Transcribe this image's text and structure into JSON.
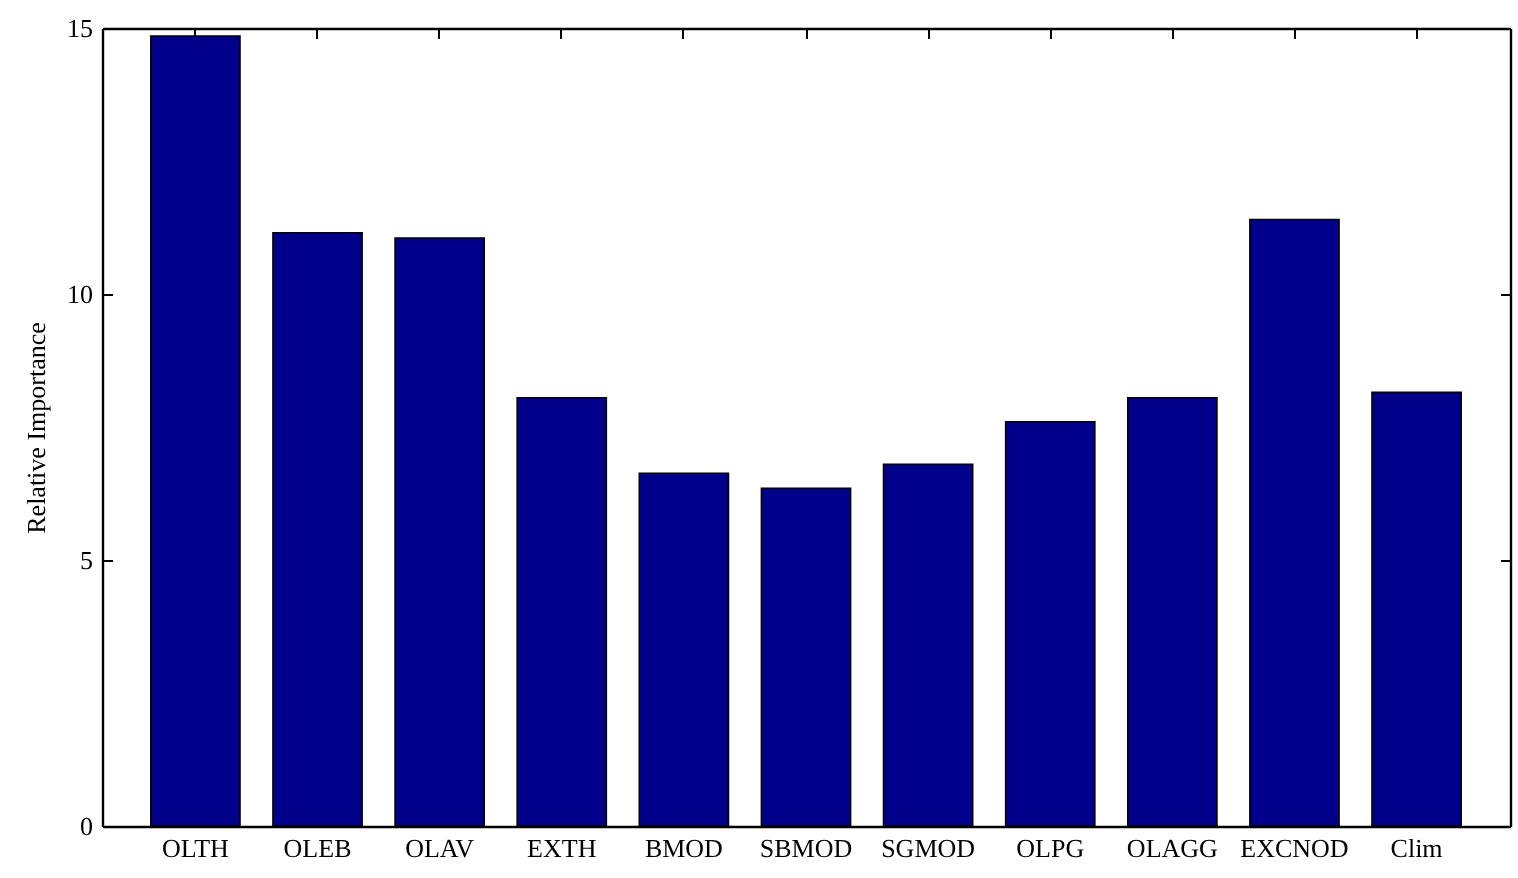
{
  "chart_data": {
    "type": "bar",
    "ylabel": "Relative Importance",
    "categories": [
      "OLTH",
      "OLEB",
      "OLAV",
      "EXTH",
      "BMOD",
      "SBMOD",
      "SGMOD",
      "OLPG",
      "OLAGG",
      "EXCNOD",
      "Clim"
    ],
    "values": [
      14.85,
      11.15,
      11.05,
      8.05,
      6.63,
      6.35,
      6.8,
      7.6,
      8.05,
      11.4,
      8.15
    ],
    "color": "#00008b",
    "ylim": [
      0,
      15
    ],
    "yticks": [
      0,
      5,
      10,
      15
    ],
    "grid": false
  }
}
